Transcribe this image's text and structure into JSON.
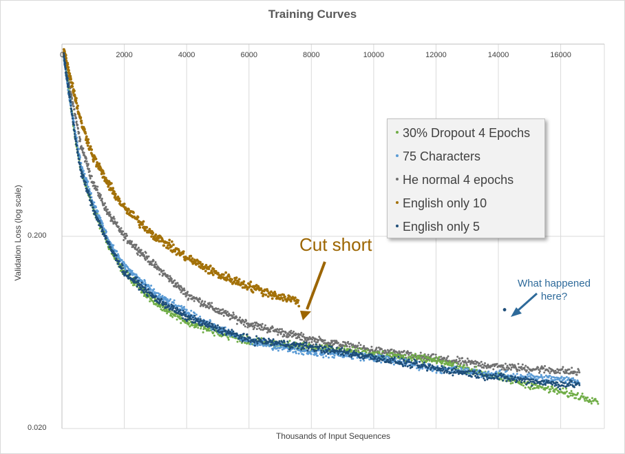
{
  "chart_data": {
    "type": "scatter",
    "title": "Training  Curves",
    "xlabel": "Thousands of Input Sequences",
    "ylabel": "Validation Loss (log scale)",
    "x_ticks": [
      "0",
      "2000",
      "4000",
      "6000",
      "8000",
      "10000",
      "12000",
      "14000",
      "16000"
    ],
    "y_ticks": [
      "0.200",
      "0.020"
    ],
    "xlim": [
      0,
      17400
    ],
    "ylim": [
      0.02,
      2.0
    ],
    "y_scale": "log",
    "x_axis_position": "top",
    "grid": true,
    "legend_position": "right",
    "series": [
      {
        "name": "30% Dropout 4 Epochs",
        "color": "#70ad47",
        "x_end": 17200,
        "points": [
          [
            50,
            1.8
          ],
          [
            200,
            1.2
          ],
          [
            400,
            0.7
          ],
          [
            600,
            0.45
          ],
          [
            1000,
            0.28
          ],
          [
            1500,
            0.18
          ],
          [
            2000,
            0.13
          ],
          [
            3000,
            0.09
          ],
          [
            4000,
            0.072
          ],
          [
            5000,
            0.063
          ],
          [
            6000,
            0.057
          ],
          [
            8000,
            0.053
          ],
          [
            10000,
            0.049
          ],
          [
            12000,
            0.045
          ],
          [
            14000,
            0.037
          ],
          [
            16000,
            0.031
          ],
          [
            17200,
            0.028
          ]
        ]
      },
      {
        "name": "75 Characters",
        "color": "#5b9bd5",
        "x_end": 16600,
        "points": [
          [
            50,
            1.8
          ],
          [
            200,
            1.15
          ],
          [
            400,
            0.75
          ],
          [
            600,
            0.48
          ],
          [
            1000,
            0.3
          ],
          [
            1500,
            0.19
          ],
          [
            2000,
            0.14
          ],
          [
            3000,
            0.1
          ],
          [
            4000,
            0.08
          ],
          [
            5000,
            0.066
          ],
          [
            6000,
            0.057
          ],
          [
            8000,
            0.05
          ],
          [
            10000,
            0.047
          ],
          [
            12000,
            0.041
          ],
          [
            14000,
            0.038
          ],
          [
            16000,
            0.036
          ],
          [
            16600,
            0.035
          ]
        ]
      },
      {
        "name": "He normal 4 epochs",
        "color": "#707070",
        "x_end": 16600,
        "points": [
          [
            50,
            1.8
          ],
          [
            200,
            1.3
          ],
          [
            400,
            0.9
          ],
          [
            600,
            0.6
          ],
          [
            1000,
            0.38
          ],
          [
            1500,
            0.26
          ],
          [
            2000,
            0.2
          ],
          [
            3000,
            0.14
          ],
          [
            4000,
            0.1
          ],
          [
            5000,
            0.082
          ],
          [
            6000,
            0.07
          ],
          [
            8000,
            0.058
          ],
          [
            10000,
            0.051
          ],
          [
            12000,
            0.046
          ],
          [
            14000,
            0.042
          ],
          [
            16000,
            0.04
          ],
          [
            16600,
            0.039
          ]
        ]
      },
      {
        "name": "English only 10",
        "color": "#a37108",
        "x_end": 7600,
        "points": [
          [
            50,
            1.9
          ],
          [
            200,
            1.5
          ],
          [
            400,
            1.1
          ],
          [
            600,
            0.8
          ],
          [
            1000,
            0.52
          ],
          [
            1500,
            0.37
          ],
          [
            2000,
            0.28
          ],
          [
            3000,
            0.2
          ],
          [
            4000,
            0.155
          ],
          [
            5000,
            0.127
          ],
          [
            6000,
            0.11
          ],
          [
            7000,
            0.097
          ],
          [
            7600,
            0.092
          ]
        ]
      },
      {
        "name": "English only 5",
        "color": "#1f4e79",
        "x_end": 16600,
        "points": [
          [
            50,
            1.8
          ],
          [
            200,
            1.2
          ],
          [
            400,
            0.7
          ],
          [
            600,
            0.44
          ],
          [
            1000,
            0.28
          ],
          [
            1500,
            0.18
          ],
          [
            2000,
            0.13
          ],
          [
            3000,
            0.095
          ],
          [
            4000,
            0.076
          ],
          [
            5000,
            0.066
          ],
          [
            6000,
            0.058
          ],
          [
            8000,
            0.053
          ],
          [
            10000,
            0.047
          ],
          [
            12000,
            0.041
          ],
          [
            14000,
            0.037
          ],
          [
            16000,
            0.034
          ],
          [
            16600,
            0.034
          ]
        ]
      }
    ],
    "outlier": {
      "series": "English only 5",
      "x": 14200,
      "y": 0.083
    },
    "annotations": [
      "Cut short",
      "What happened here?"
    ]
  }
}
